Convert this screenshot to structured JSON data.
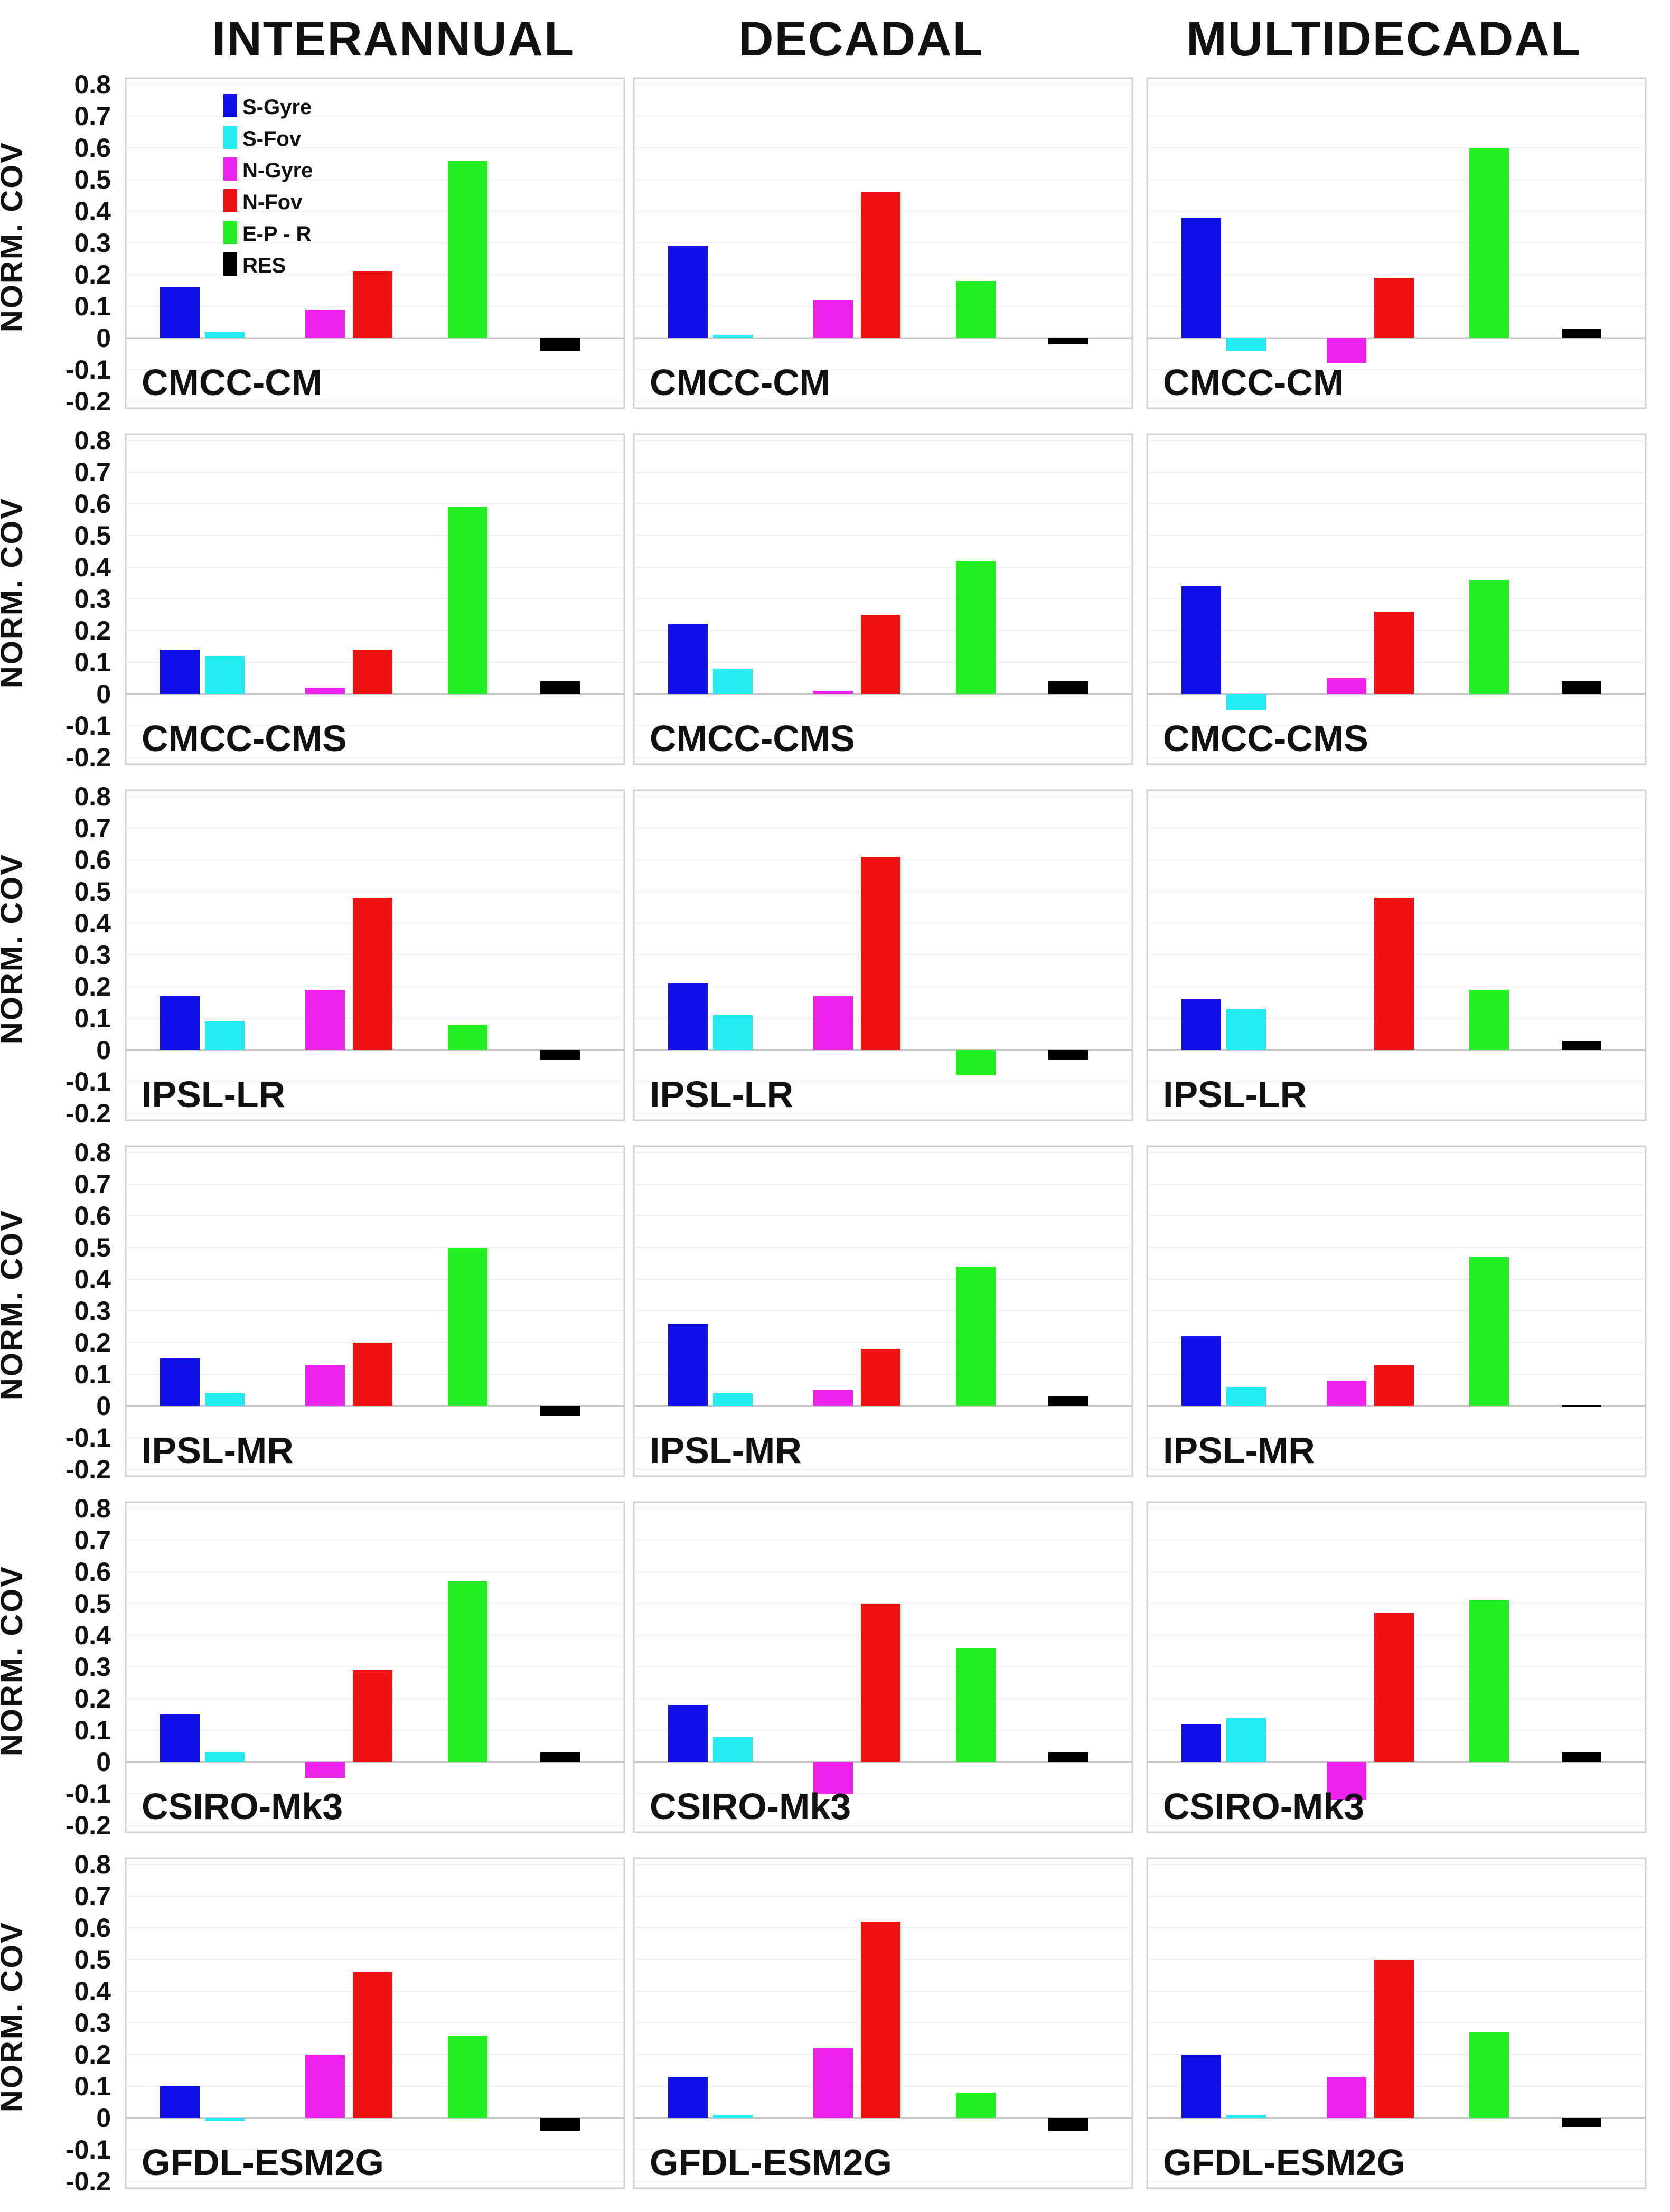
{
  "figure": {
    "column_titles": [
      "INTERANNUAL",
      "DECADAL",
      "MULTIDECADAL"
    ],
    "ylabel": "NORM. COV",
    "yticks": [
      "0.8",
      "0.7",
      "0.6",
      "0.5",
      "0.4",
      "0.3",
      "0.2",
      "0.1",
      "0",
      "-0.1",
      "-0.2"
    ],
    "legend": [
      {
        "label": "S-Gyre",
        "color": "#1010e8"
      },
      {
        "label": "S-Fov",
        "color": "#22ecf2"
      },
      {
        "label": "N-Gyre",
        "color": "#ee22ee"
      },
      {
        "label": "N-Fov",
        "color": "#ee1111"
      },
      {
        "label": "E-P - R",
        "color": "#22ee22"
      },
      {
        "label": "RES",
        "color": "#000000"
      }
    ]
  },
  "chart_data": {
    "type": "bar",
    "title": "",
    "xlabel": "",
    "ylabel": "NORM. COV",
    "ylim": [
      -0.2,
      0.8
    ],
    "categories": [
      "S-Gyre",
      "S-Fov",
      "N-Gyre",
      "N-Fov",
      "E-P - R",
      "RES"
    ],
    "rows": [
      {
        "model": "CMCC-CM",
        "panels": [
          {
            "column": "INTERANNUAL",
            "values": [
              0.16,
              0.02,
              0.09,
              0.21,
              0.56,
              -0.04
            ]
          },
          {
            "column": "DECADAL",
            "values": [
              0.29,
              0.005,
              0.12,
              0.46,
              0.18,
              -0.02
            ]
          },
          {
            "column": "MULTIDECADAL",
            "values": [
              0.38,
              -0.04,
              -0.08,
              0.19,
              0.6,
              0.03
            ]
          }
        ]
      },
      {
        "model": "CMCC-CMS",
        "panels": [
          {
            "column": "INTERANNUAL",
            "values": [
              0.14,
              0.12,
              0.02,
              0.14,
              0.59,
              0.04
            ]
          },
          {
            "column": "DECADAL",
            "values": [
              0.22,
              0.08,
              0.01,
              0.25,
              0.42,
              0.04
            ]
          },
          {
            "column": "MULTIDECADAL",
            "values": [
              0.34,
              -0.05,
              0.05,
              0.26,
              0.36,
              0.04
            ]
          }
        ]
      },
      {
        "model": "IPSL-LR",
        "panels": [
          {
            "column": "INTERANNUAL",
            "values": [
              0.17,
              0.09,
              0.19,
              0.48,
              0.08,
              -0.03
            ]
          },
          {
            "column": "DECADAL",
            "values": [
              0.21,
              0.11,
              0.17,
              0.61,
              -0.08,
              -0.03
            ]
          },
          {
            "column": "MULTIDECADAL",
            "values": [
              0.16,
              0.13,
              0,
              0.48,
              0.19,
              0.03
            ]
          }
        ]
      },
      {
        "model": "IPSL-MR",
        "panels": [
          {
            "column": "INTERANNUAL",
            "values": [
              0.15,
              0.04,
              0.13,
              0.2,
              0.5,
              -0.03
            ]
          },
          {
            "column": "DECADAL",
            "values": [
              0.26,
              0.04,
              0.05,
              0.18,
              0.44,
              0.03
            ]
          },
          {
            "column": "MULTIDECADAL",
            "values": [
              0.22,
              0.06,
              0.08,
              0.13,
              0.47,
              0.005
            ]
          }
        ]
      },
      {
        "model": "CSIRO-Mk3",
        "panels": [
          {
            "column": "INTERANNUAL",
            "values": [
              0.15,
              0.03,
              -0.05,
              0.29,
              0.57,
              0.03
            ]
          },
          {
            "column": "DECADAL",
            "values": [
              0.18,
              0.08,
              -0.1,
              0.5,
              0.36,
              0.03
            ]
          },
          {
            "column": "MULTIDECADAL",
            "values": [
              0.12,
              0.14,
              -0.12,
              0.47,
              0.51,
              0.03
            ]
          }
        ]
      },
      {
        "model": "GFDL-ESM2G",
        "panels": [
          {
            "column": "INTERANNUAL",
            "values": [
              0.1,
              -0.01,
              0.2,
              0.46,
              0.26,
              -0.04
            ]
          },
          {
            "column": "DECADAL",
            "values": [
              0.13,
              0.005,
              0.22,
              0.62,
              0.08,
              -0.04
            ]
          },
          {
            "column": "MULTIDECADAL",
            "values": [
              0.2,
              0.01,
              0.13,
              0.5,
              0.27,
              -0.03
            ]
          }
        ]
      }
    ]
  }
}
